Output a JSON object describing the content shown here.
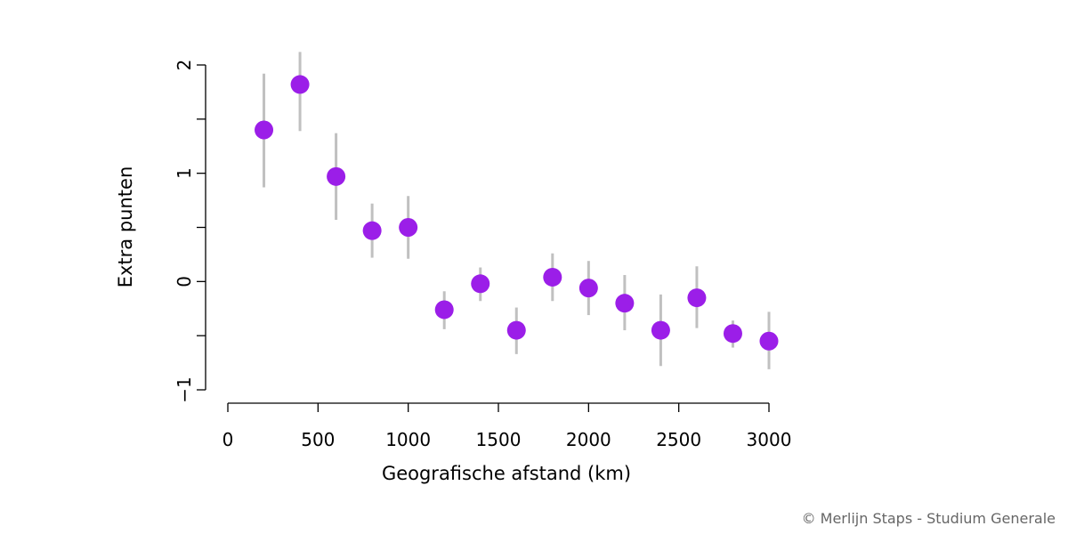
{
  "chart_data": {
    "type": "scatter",
    "xlabel": "Geografische afstand (km)",
    "ylabel": "Extra punten",
    "xlim": [
      0,
      3000
    ],
    "ylim": [
      -1,
      2
    ],
    "x_ticks": [
      0,
      500,
      1000,
      1500,
      2000,
      2500,
      3000
    ],
    "x_tick_labels": [
      "0",
      "500",
      "1000",
      "1500",
      "2000",
      "2500",
      "3000"
    ],
    "y_ticks": [
      -1,
      -0.5,
      0,
      0.5,
      1,
      1.5,
      2
    ],
    "y_tick_labels": [
      "−1",
      "",
      "0",
      "",
      "1",
      "",
      "2"
    ],
    "point_color": "#9b1ee8",
    "errorbar_color": "#c0c0c0",
    "grid": false,
    "points": [
      {
        "x": 200,
        "y": 1.4,
        "lo": 0.87,
        "hi": 1.92
      },
      {
        "x": 400,
        "y": 1.82,
        "lo": 1.39,
        "hi": 2.12
      },
      {
        "x": 600,
        "y": 0.97,
        "lo": 0.57,
        "hi": 1.37
      },
      {
        "x": 800,
        "y": 0.47,
        "lo": 0.22,
        "hi": 0.72
      },
      {
        "x": 1000,
        "y": 0.5,
        "lo": 0.21,
        "hi": 0.79
      },
      {
        "x": 1200,
        "y": -0.26,
        "lo": -0.44,
        "hi": -0.09
      },
      {
        "x": 1400,
        "y": -0.02,
        "lo": -0.18,
        "hi": 0.13
      },
      {
        "x": 1600,
        "y": -0.45,
        "lo": -0.67,
        "hi": -0.24
      },
      {
        "x": 1800,
        "y": 0.04,
        "lo": -0.18,
        "hi": 0.26
      },
      {
        "x": 2000,
        "y": -0.06,
        "lo": -0.31,
        "hi": 0.19
      },
      {
        "x": 2200,
        "y": -0.2,
        "lo": -0.45,
        "hi": 0.06
      },
      {
        "x": 2400,
        "y": -0.45,
        "lo": -0.78,
        "hi": -0.12
      },
      {
        "x": 2600,
        "y": -0.15,
        "lo": -0.43,
        "hi": 0.14
      },
      {
        "x": 2800,
        "y": -0.48,
        "lo": -0.61,
        "hi": -0.36
      },
      {
        "x": 3000,
        "y": -0.55,
        "lo": -0.81,
        "hi": -0.28
      }
    ]
  },
  "credit": "© Merlijn Staps - Studium Generale"
}
